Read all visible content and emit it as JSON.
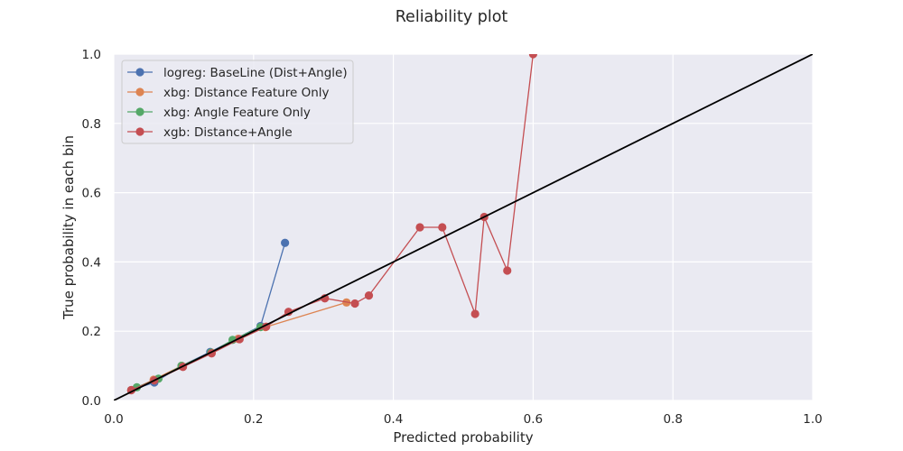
{
  "chart_data": {
    "type": "line",
    "title": "Reliability plot",
    "xlabel": "Predicted probability",
    "ylabel": "True probability in each bin",
    "xlim": [
      0,
      1
    ],
    "ylim": [
      0,
      1
    ],
    "xticks": [
      "0.0",
      "0.2",
      "0.4",
      "0.6",
      "0.8",
      "1.0"
    ],
    "yticks": [
      "0.0",
      "0.2",
      "0.4",
      "0.6",
      "0.8",
      "1.0"
    ],
    "grid": true,
    "legend_position": "top-left",
    "background": "#eaeaf2",
    "reference_line": {
      "x": [
        0,
        1
      ],
      "y": [
        0,
        1
      ],
      "color": "#000000"
    },
    "series": [
      {
        "name": "logreg: BaseLine (Dist+Angle)",
        "color": "#4c72b0",
        "x": [
          0.025,
          0.058,
          0.097,
          0.138,
          0.21,
          0.245
        ],
        "y": [
          0.03,
          0.052,
          0.1,
          0.14,
          0.215,
          0.455
        ]
      },
      {
        "name": "xbg: Distance Feature Only",
        "color": "#dd8452",
        "x": [
          0.025,
          0.057,
          0.097,
          0.14,
          0.178,
          0.217,
          0.333
        ],
        "y": [
          0.03,
          0.06,
          0.1,
          0.138,
          0.178,
          0.212,
          0.283
        ]
      },
      {
        "name": "xbg: Angle Feature Only",
        "color": "#55a868",
        "x": [
          0.033,
          0.064,
          0.097,
          0.139,
          0.17,
          0.21
        ],
        "y": [
          0.038,
          0.063,
          0.1,
          0.138,
          0.175,
          0.212
        ]
      },
      {
        "name": "xgb: Distance+Angle",
        "color": "#c44e52",
        "x": [
          0.025,
          0.058,
          0.099,
          0.14,
          0.18,
          0.218,
          0.25,
          0.302,
          0.345,
          0.365,
          0.438,
          0.47,
          0.517,
          0.53,
          0.563,
          0.6
        ],
        "y": [
          0.03,
          0.058,
          0.097,
          0.136,
          0.177,
          0.213,
          0.256,
          0.295,
          0.28,
          0.303,
          0.5,
          0.5,
          0.25,
          0.53,
          0.375,
          1.0
        ]
      }
    ]
  }
}
